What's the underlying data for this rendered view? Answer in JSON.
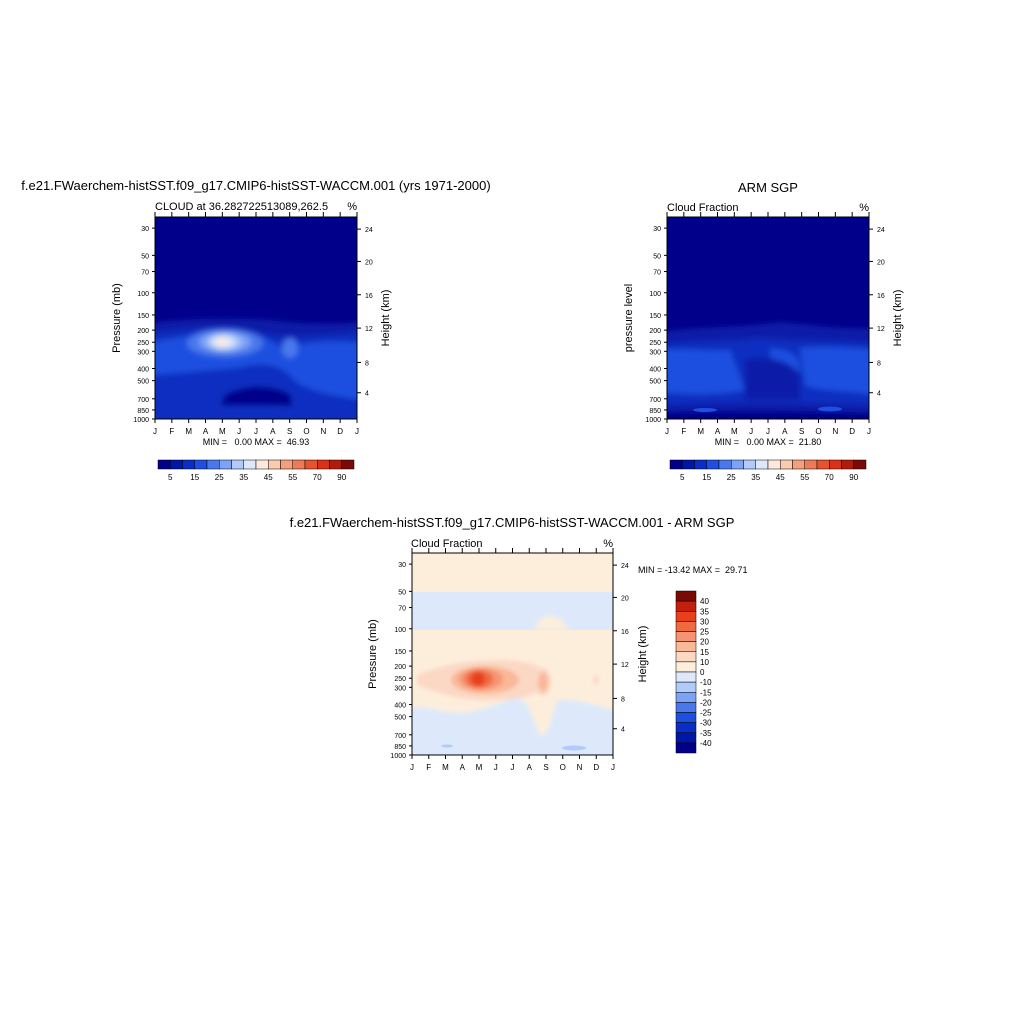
{
  "chart_data": [
    {
      "type": "heatmap",
      "title": "f.e21.FWaerchem-histSST.f09_g17.CMIP6-histSST-WACCM.001 (yrs 1971-2000)",
      "subtitle_left": "CLOUD at 36.282722513089,262.5",
      "units": "%",
      "ylabel": "Pressure (mb)",
      "y2label": "Height (km)",
      "x_ticks": [
        "J",
        "F",
        "M",
        "A",
        "M",
        "J",
        "J",
        "A",
        "S",
        "O",
        "N",
        "D",
        "J"
      ],
      "y_ticks": [
        "30",
        "50",
        "70",
        "100",
        "150",
        "200",
        "250",
        "300",
        "400",
        "500",
        "700",
        "850",
        "1000"
      ],
      "y2_ticks": [
        "24",
        "20",
        "16",
        "12",
        "8",
        "4"
      ],
      "stats": "MIN =   0.00 MAX =  46.93",
      "min": 0.0,
      "max": 46.93
    },
    {
      "type": "heatmap",
      "title": "ARM SGP",
      "subtitle_left": "Cloud Fraction",
      "units": "%",
      "ylabel": "pressure level",
      "y2label": "Height (km)",
      "x_ticks": [
        "J",
        "F",
        "M",
        "A",
        "M",
        "J",
        "J",
        "A",
        "S",
        "O",
        "N",
        "D",
        "J"
      ],
      "y_ticks": [
        "30",
        "50",
        "70",
        "100",
        "150",
        "200",
        "250",
        "300",
        "400",
        "500",
        "700",
        "850",
        "1000"
      ],
      "y2_ticks": [
        "24",
        "20",
        "16",
        "12",
        "8",
        "4"
      ],
      "stats": "MIN =   0.00 MAX =  21.80",
      "min": 0.0,
      "max": 21.8
    },
    {
      "type": "heatmap",
      "title": "f.e21.FWaerchem-histSST.f09_g17.CMIP6-histSST-WACCM.001 - ARM SGP",
      "subtitle_left": "Cloud Fraction",
      "units": "%",
      "ylabel": "Pressure (mb)",
      "y2label": "Height (km)",
      "x_ticks": [
        "J",
        "F",
        "M",
        "A",
        "M",
        "J",
        "J",
        "A",
        "S",
        "O",
        "N",
        "D",
        "J"
      ],
      "y_ticks": [
        "30",
        "50",
        "70",
        "100",
        "150",
        "200",
        "250",
        "300",
        "400",
        "500",
        "700",
        "850",
        "1000"
      ],
      "y2_ticks": [
        "24",
        "20",
        "16",
        "12",
        "8",
        "4"
      ],
      "stats": "MIN = -13.42 MAX =  29.71",
      "min": -13.42,
      "max": 29.71
    }
  ],
  "colorbars": {
    "absolute": {
      "labels": [
        "5",
        "15",
        "25",
        "35",
        "45",
        "55",
        "70",
        "90"
      ],
      "colors": [
        "#00008b",
        "#0016a8",
        "#0a2dc8",
        "#1f4fe0",
        "#4a78ec",
        "#7da3f5",
        "#b0cbf9",
        "#dde9fb",
        "#fde9dc",
        "#fbcbb0",
        "#f5a07c",
        "#f07a55",
        "#e8522c",
        "#d8321a",
        "#b01c0c",
        "#7a0a04"
      ]
    },
    "difference": {
      "labels": [
        "40",
        "35",
        "30",
        "25",
        "20",
        "15",
        "10",
        "0",
        "-10",
        "-15",
        "-20",
        "-25",
        "-30",
        "-35",
        "-40"
      ],
      "colors": [
        "#7a0a04",
        "#c0200c",
        "#e8401c",
        "#f06a40",
        "#f59472",
        "#f9b898",
        "#fbd8c4",
        "#fdeedc",
        "#dde9fb",
        "#b0cbf9",
        "#7da3f5",
        "#4a78ec",
        "#1f4fe0",
        "#0a2dc8",
        "#0016a8",
        "#00008b"
      ]
    }
  }
}
